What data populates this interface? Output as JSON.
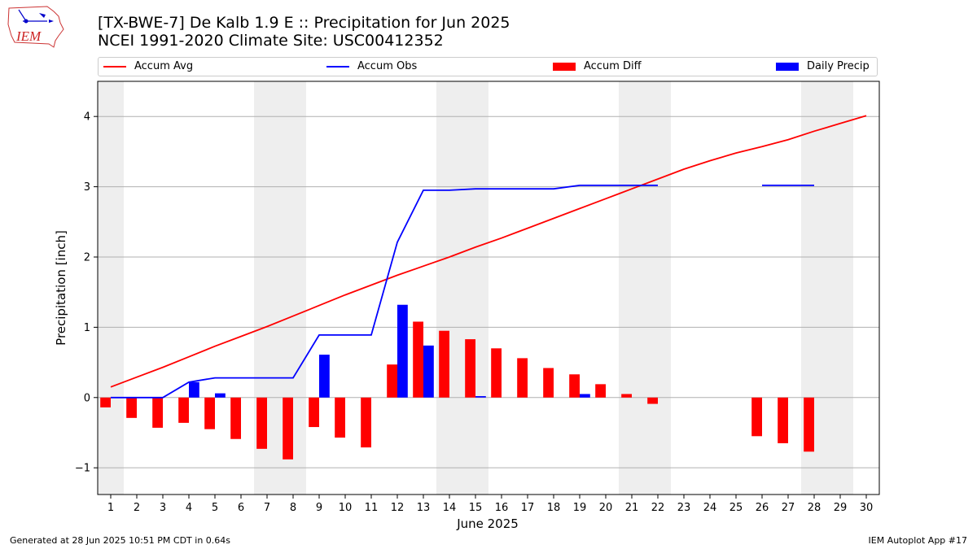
{
  "header": {
    "title_line1": "[TX-BWE-7] De Kalb 1.9 E :: Precipitation for Jun 2025",
    "title_line2": "NCEI 1991-2020 Climate Site: USC00412352",
    "logo_text": "IEM"
  },
  "legend": {
    "accum_avg": "Accum Avg",
    "accum_obs": "Accum Obs",
    "accum_diff": "Accum Diff",
    "daily_precip": "Daily Precip"
  },
  "colors": {
    "avg": "#ff0000",
    "obs": "#0000ff",
    "diff": "#ff0000",
    "daily": "#0000ff",
    "weekend": "#eeeeee",
    "grid": "#b0b0b0"
  },
  "footer": {
    "left": "Generated at 28 Jun 2025 10:51 PM CDT in 0.64s",
    "right": "IEM Autoplot App #17"
  },
  "chart_data": {
    "type": "bar",
    "xlabel": "June 2025",
    "ylabel": "Precipitation [inch]",
    "xlim": [
      0.5,
      30.5
    ],
    "ylim": [
      -1.38,
      4.5
    ],
    "yticks": [
      -1,
      0,
      1,
      2,
      3,
      4
    ],
    "ytick_labels": [
      "−1",
      "0",
      "1",
      "2",
      "3",
      "4"
    ],
    "days": [
      1,
      2,
      3,
      4,
      5,
      6,
      7,
      8,
      9,
      10,
      11,
      12,
      13,
      14,
      15,
      16,
      17,
      18,
      19,
      20,
      21,
      22,
      23,
      24,
      25,
      26,
      27,
      28,
      29,
      30
    ],
    "weekend_shading": [
      [
        0.5,
        1.5
      ],
      [
        6.5,
        8.5
      ],
      [
        13.5,
        15.5
      ],
      [
        20.5,
        22.5
      ],
      [
        27.5,
        29.5
      ]
    ],
    "grid": true,
    "legend_position": "top",
    "series": [
      {
        "name": "Accum Avg",
        "kind": "line",
        "x": [
          1,
          2,
          3,
          4,
          5,
          6,
          7,
          8,
          9,
          10,
          11,
          12,
          13,
          14,
          15,
          16,
          17,
          18,
          19,
          20,
          21,
          22,
          23,
          24,
          25,
          26,
          27,
          28,
          29,
          30
        ],
        "values": [
          0.15,
          0.29,
          0.43,
          0.58,
          0.73,
          0.87,
          1.01,
          1.16,
          1.31,
          1.46,
          1.6,
          1.74,
          1.87,
          2.0,
          2.14,
          2.27,
          2.41,
          2.55,
          2.69,
          2.83,
          2.97,
          3.11,
          3.25,
          3.37,
          3.48,
          3.57,
          3.67,
          3.79,
          3.9,
          4.01
        ]
      },
      {
        "name": "Accum Obs",
        "kind": "line",
        "x": [
          1,
          2,
          3,
          4,
          5,
          6,
          7,
          8,
          9,
          10,
          11,
          12,
          13,
          14,
          15,
          16,
          17,
          18,
          19,
          20,
          21,
          22,
          23,
          24,
          25,
          26,
          27,
          28,
          29,
          30
        ],
        "values": [
          0.0,
          0.0,
          0.0,
          0.22,
          0.28,
          0.28,
          0.28,
          0.28,
          0.89,
          0.89,
          0.89,
          2.21,
          2.95,
          2.95,
          2.97,
          2.97,
          2.97,
          2.97,
          3.02,
          3.02,
          3.02,
          3.02,
          null,
          null,
          null,
          3.02,
          3.02,
          3.02,
          null,
          null
        ]
      },
      {
        "name": "Accum Diff",
        "kind": "bar",
        "x": [
          1,
          2,
          3,
          4,
          5,
          6,
          7,
          8,
          9,
          10,
          11,
          12,
          13,
          14,
          15,
          16,
          17,
          18,
          19,
          20,
          21,
          22,
          23,
          24,
          25,
          26,
          27,
          28,
          29,
          30
        ],
        "values": [
          -0.14,
          -0.29,
          -0.43,
          -0.36,
          -0.45,
          -0.59,
          -0.73,
          -0.88,
          -0.42,
          -0.57,
          -0.71,
          0.47,
          1.08,
          0.95,
          0.83,
          0.7,
          0.56,
          0.42,
          0.33,
          0.19,
          0.05,
          -0.09,
          null,
          null,
          null,
          -0.55,
          -0.65,
          -0.77,
          null,
          null
        ]
      },
      {
        "name": "Daily Precip",
        "kind": "bar",
        "x": [
          1,
          2,
          3,
          4,
          5,
          6,
          7,
          8,
          9,
          10,
          11,
          12,
          13,
          14,
          15,
          16,
          17,
          18,
          19,
          20,
          21,
          22,
          23,
          24,
          25,
          26,
          27,
          28,
          29,
          30
        ],
        "values": [
          0,
          0,
          0,
          0.22,
          0.06,
          0,
          0,
          0,
          0.61,
          0,
          0,
          1.32,
          0.74,
          0,
          0.02,
          0,
          0,
          0,
          0.05,
          0,
          0,
          0,
          null,
          null,
          null,
          0,
          0,
          0,
          null,
          null
        ]
      }
    ]
  }
}
